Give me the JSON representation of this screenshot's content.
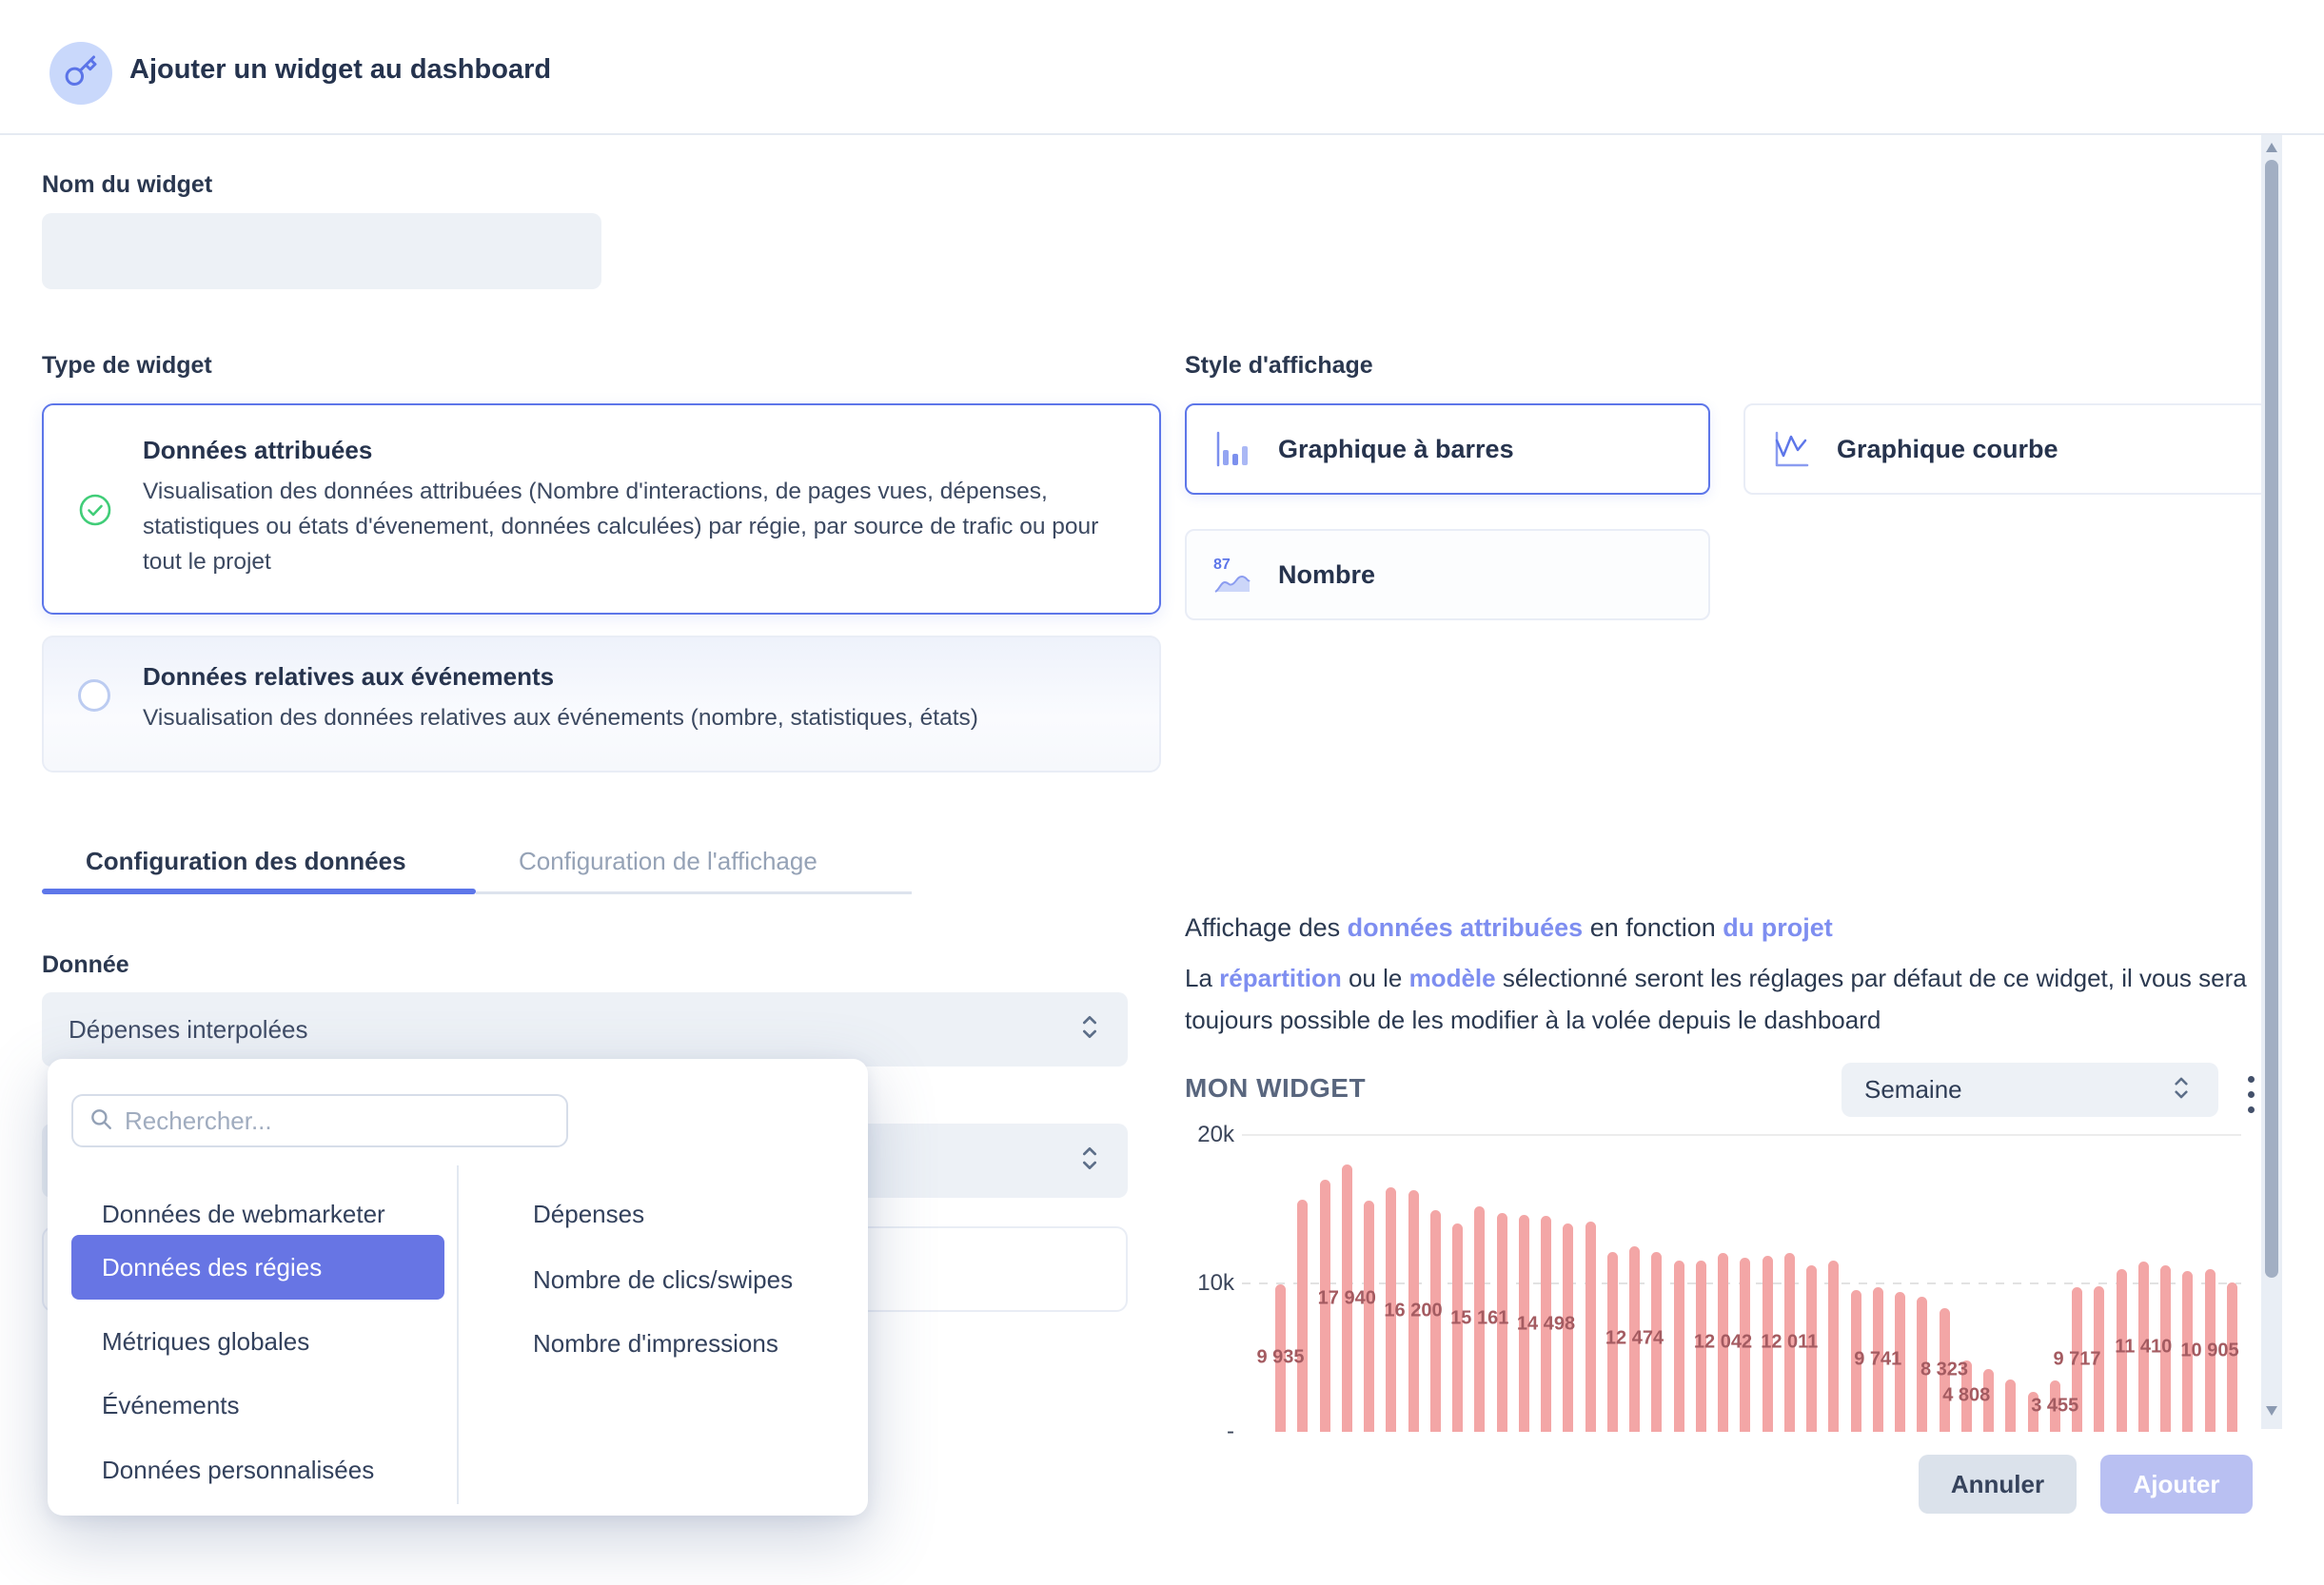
{
  "colors": {
    "accent": "#5d76e9",
    "accent_text": "#7e8ef0",
    "pill": "#6775e4",
    "bar": "#f3a6a6",
    "bar_label": "#a45b61",
    "success": "#41cd78"
  },
  "header": {
    "title": "Ajouter un widget au dashboard",
    "icon": "key-icon"
  },
  "form": {
    "name": {
      "label": "Nom du widget",
      "value": ""
    },
    "type": {
      "label": "Type de widget",
      "options": [
        {
          "title": "Données attribuées",
          "description": "Visualisation des données attribuées (Nombre d'interactions, de pages vues, dépenses, statistiques ou états d'évenement, données calculées) par régie, par source de trafic ou pour tout le projet",
          "selected": true
        },
        {
          "title": "Données relatives aux événements",
          "description": "Visualisation des données relatives aux événements (nombre, statistiques, états)",
          "selected": false
        }
      ]
    },
    "style": {
      "label": "Style d'affichage",
      "options": [
        {
          "label": "Graphique à barres",
          "icon": "bar-chart-icon",
          "selected": true
        },
        {
          "label": "Graphique courbe",
          "icon": "line-chart-icon",
          "selected": false
        },
        {
          "label": "Nombre",
          "icon": "number-87-icon",
          "selected": false
        }
      ]
    },
    "tabs": [
      {
        "label": "Configuration des données",
        "active": true
      },
      {
        "label": "Configuration de l'affichage",
        "active": false
      }
    ],
    "data_select": {
      "label": "Donnée",
      "value": "Dépenses interpolées"
    }
  },
  "dropdown": {
    "search": {
      "placeholder": "Rechercher...",
      "value": ""
    },
    "categories": [
      {
        "label": "Données de webmarketer",
        "selected": false
      },
      {
        "label": "Données des régies",
        "selected": true
      },
      {
        "label": "Métriques globales",
        "selected": false
      },
      {
        "label": "Événements",
        "selected": false
      },
      {
        "label": "Données personnalisées",
        "selected": false
      }
    ],
    "metrics": [
      "Dépenses",
      "Nombre de clics/swipes",
      "Nombre d'impressions"
    ]
  },
  "preview": {
    "summary": {
      "t1": "Affichage des ",
      "a1": "données attribuées",
      "t2": " en fonction ",
      "a2": "du projet"
    },
    "note": {
      "t1": "La ",
      "a1": "répartition",
      "t2": " ou le ",
      "a2": "modèle",
      "t3": " sélectionné seront les réglages par défaut de ce widget, il vous sera toujours possible de les modifier à la volée depuis le dashboard"
    },
    "widget_title": "MON WIDGET",
    "period": {
      "value": "Semaine"
    }
  },
  "chart_data": {
    "type": "bar",
    "title": "MON WIDGET",
    "ylim": [
      0,
      20000
    ],
    "yticks": [
      "20k",
      "10k",
      "-"
    ],
    "grid": true,
    "legend": false,
    "values": [
      9935,
      15600,
      16950,
      17940,
      15500,
      16400,
      16200,
      14900,
      14000,
      15161,
      14700,
      14600,
      14498,
      14000,
      14100,
      12100,
      12474,
      12100,
      11500,
      11500,
      12042,
      11700,
      11800,
      12011,
      11200,
      11500,
      9500,
      9741,
      9400,
      9100,
      8323,
      4808,
      4200,
      3500,
      2700,
      3455,
      9717,
      9800,
      10900,
      11410,
      11200,
      10800,
      10905,
      10000
    ],
    "bar_labels": [
      "9 935",
      "",
      "",
      "17 940",
      "",
      "",
      "16 200",
      "",
      "",
      "15 161",
      "",
      "",
      "14 498",
      "",
      "",
      "",
      "12 474",
      "",
      "",
      "",
      "12 042",
      "",
      "",
      "12 011",
      "",
      "",
      "",
      "9 741",
      "",
      "",
      "8 323",
      "4 808",
      "",
      "",
      "",
      "3 455",
      "9 717",
      "",
      "",
      "11 410",
      "",
      "",
      "10 905",
      ""
    ]
  },
  "footer": {
    "cancel": "Annuler",
    "submit": "Ajouter"
  }
}
